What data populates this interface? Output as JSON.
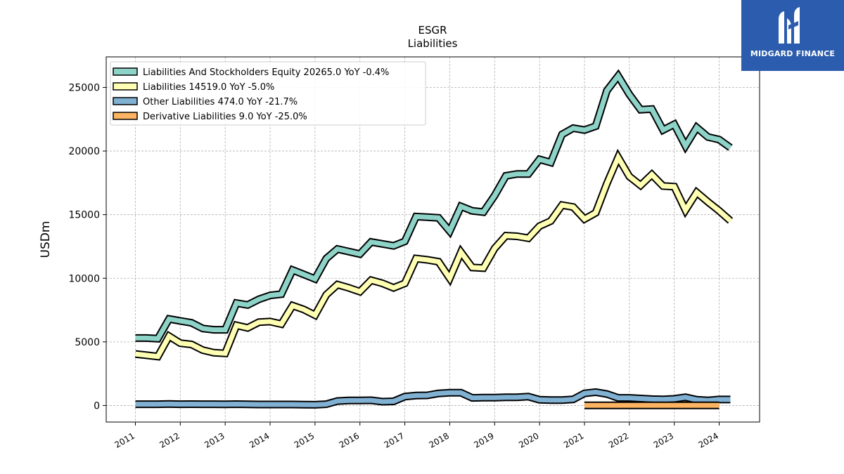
{
  "logo": {
    "text": "MIDGARD FINANCE"
  },
  "chart_data": {
    "type": "line",
    "title": "ESGR",
    "subtitle": "Liabilities",
    "ylabel": "USDm",
    "xlabel": "",
    "xlim": [
      2010.35,
      2024.9
    ],
    "ylim": [
      -1300,
      27400
    ],
    "yticks": [
      0,
      5000,
      10000,
      15000,
      20000,
      25000
    ],
    "xticks": [
      2011,
      2012,
      2013,
      2014,
      2015,
      2016,
      2017,
      2018,
      2019,
      2020,
      2021,
      2022,
      2023,
      2024
    ],
    "grid": true,
    "legend_position": "top-left",
    "series": [
      {
        "name": "Liabilities And Stockholders Equity  20265.0 YoY -0.4%",
        "color": "#8dd3c7",
        "x": [
          2011.0,
          2011.25,
          2011.5,
          2011.75,
          2012.0,
          2012.25,
          2012.5,
          2012.75,
          2013.0,
          2013.25,
          2013.5,
          2013.75,
          2014.0,
          2014.25,
          2014.5,
          2014.75,
          2015.0,
          2015.25,
          2015.5,
          2015.75,
          2016.0,
          2016.25,
          2016.5,
          2016.75,
          2017.0,
          2017.25,
          2017.5,
          2017.75,
          2018.0,
          2018.25,
          2018.5,
          2018.75,
          2019.0,
          2019.25,
          2019.5,
          2019.75,
          2020.0,
          2020.25,
          2020.5,
          2020.75,
          2021.0,
          2021.25,
          2021.5,
          2021.75,
          2022.0,
          2022.25,
          2022.5,
          2022.75,
          2023.0,
          2023.25,
          2023.5,
          2023.75,
          2024.0,
          2024.25
        ],
        "y": [
          5300,
          5300,
          5250,
          6800,
          6650,
          6500,
          6050,
          5950,
          5950,
          8050,
          7900,
          8350,
          8650,
          8750,
          10650,
          10300,
          9950,
          11550,
          12300,
          12100,
          11900,
          12850,
          12700,
          12550,
          12900,
          14850,
          14800,
          14750,
          13700,
          15650,
          15300,
          15200,
          16500,
          18050,
          18200,
          18200,
          19350,
          19100,
          21300,
          21800,
          21650,
          21950,
          24750,
          25900,
          24450,
          23250,
          23300,
          21650,
          22100,
          20400,
          21850,
          21100,
          20900,
          20265
        ]
      },
      {
        "name": "Liabilities  14519.0 YoY -5.0%",
        "color": "#ffffb3",
        "x": [
          2011.0,
          2011.25,
          2011.5,
          2011.75,
          2012.0,
          2012.25,
          2012.5,
          2012.75,
          2013.0,
          2013.25,
          2013.5,
          2013.75,
          2014.0,
          2014.25,
          2014.5,
          2014.75,
          2015.0,
          2015.25,
          2015.5,
          2015.75,
          2016.0,
          2016.25,
          2016.5,
          2016.75,
          2017.0,
          2017.25,
          2017.5,
          2017.75,
          2018.0,
          2018.25,
          2018.5,
          2018.75,
          2019.0,
          2019.25,
          2019.5,
          2019.75,
          2020.0,
          2020.25,
          2020.5,
          2020.75,
          2021.0,
          2021.25,
          2021.5,
          2021.75,
          2022.0,
          2022.25,
          2022.5,
          2022.75,
          2023.0,
          2023.25,
          2023.5,
          2023.75,
          2024.0,
          2024.25
        ],
        "y": [
          4050,
          3950,
          3850,
          5450,
          4900,
          4800,
          4350,
          4150,
          4100,
          6300,
          6100,
          6550,
          6600,
          6400,
          7850,
          7550,
          7100,
          8700,
          9500,
          9250,
          8950,
          9850,
          9600,
          9250,
          9600,
          11550,
          11450,
          11300,
          10000,
          12050,
          10850,
          10800,
          12350,
          13350,
          13300,
          13150,
          14100,
          14500,
          15750,
          15600,
          14650,
          15150,
          17450,
          19500,
          18000,
          17300,
          18150,
          17250,
          17200,
          15350,
          16750,
          16000,
          15300,
          14519
        ]
      },
      {
        "name": "Other Liabilities  474.0 YoY -21.7%",
        "color": "#80b1d3",
        "x": [
          2011.0,
          2011.25,
          2011.5,
          2011.75,
          2012.0,
          2012.25,
          2012.5,
          2012.75,
          2013.0,
          2013.25,
          2013.5,
          2013.75,
          2014.0,
          2014.25,
          2014.5,
          2014.75,
          2015.0,
          2015.25,
          2015.5,
          2015.75,
          2016.0,
          2016.25,
          2016.5,
          2016.75,
          2017.0,
          2017.25,
          2017.5,
          2017.75,
          2018.0,
          2018.25,
          2018.5,
          2018.75,
          2019.0,
          2019.25,
          2019.5,
          2019.75,
          2020.0,
          2020.25,
          2020.5,
          2020.75,
          2021.0,
          2021.25,
          2021.5,
          2021.75,
          2022.0,
          2022.25,
          2022.5,
          2022.75,
          2023.0,
          2023.25,
          2023.5,
          2023.75,
          2024.0,
          2024.25
        ],
        "y": [
          100,
          100,
          100,
          120,
          100,
          110,
          100,
          100,
          90,
          110,
          90,
          80,
          80,
          80,
          80,
          70,
          60,
          100,
          350,
          400,
          400,
          410,
          300,
          330,
          700,
          780,
          800,
          950,
          1000,
          1000,
          600,
          620,
          620,
          650,
          650,
          700,
          450,
          420,
          430,
          480,
          950,
          1050,
          900,
          600,
          600,
          550,
          500,
          480,
          520,
          650,
          450,
          400,
          470,
          474
        ]
      },
      {
        "name": "Derivative Liabilities  9.0 YoY -25.0%",
        "color": "#fdb462",
        "x": [
          2021.0,
          2021.25,
          2021.5,
          2021.75,
          2022.0,
          2022.25,
          2022.5,
          2022.75,
          2023.0,
          2023.25,
          2023.5,
          2023.75,
          2024.0
        ],
        "y": [
          10,
          12,
          13,
          12,
          11,
          12,
          12,
          11,
          10,
          11,
          12,
          12,
          9
        ]
      }
    ]
  }
}
